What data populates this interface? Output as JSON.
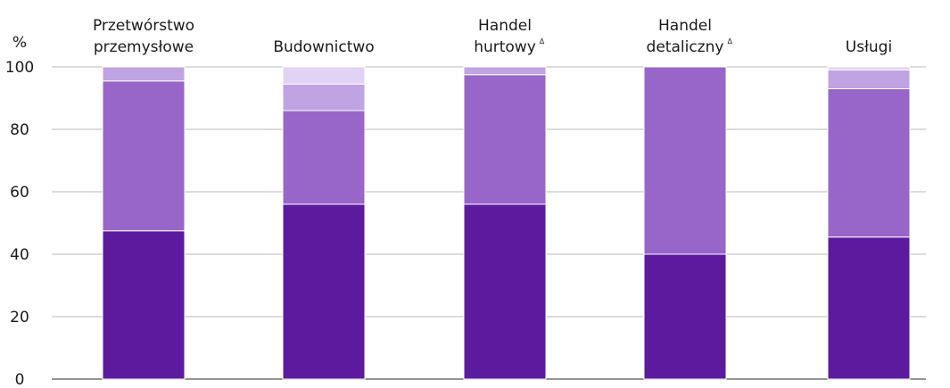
{
  "chart_data": {
    "type": "bar",
    "stacked": true,
    "ylabel": "%",
    "ylim": [
      0,
      100
    ],
    "yticks": [
      0,
      20,
      40,
      60,
      80,
      100
    ],
    "grid": true,
    "categories": [
      {
        "lines": [
          "Przetwórstwo",
          "przemysłowe"
        ],
        "note": ""
      },
      {
        "lines": [
          "Budownictwo"
        ],
        "note": ""
      },
      {
        "lines": [
          "Handel",
          "hurtowy"
        ],
        "note": "Δ"
      },
      {
        "lines": [
          "Handel",
          "detaliczny"
        ],
        "note": "Δ"
      },
      {
        "lines": [
          "Usługi"
        ],
        "note": ""
      }
    ],
    "series": [
      {
        "color": "#5c1a9e",
        "values": [
          47.5,
          56,
          56,
          40,
          45.5
        ]
      },
      {
        "color": "#9866c9",
        "values": [
          48,
          30,
          41.5,
          60,
          47.5
        ]
      },
      {
        "color": "#c0a3e2",
        "values": [
          4.5,
          8.5,
          2.5,
          0,
          6
        ]
      },
      {
        "color": "#e2d3f5",
        "values": [
          0,
          5.5,
          0,
          0,
          1
        ]
      }
    ]
  }
}
